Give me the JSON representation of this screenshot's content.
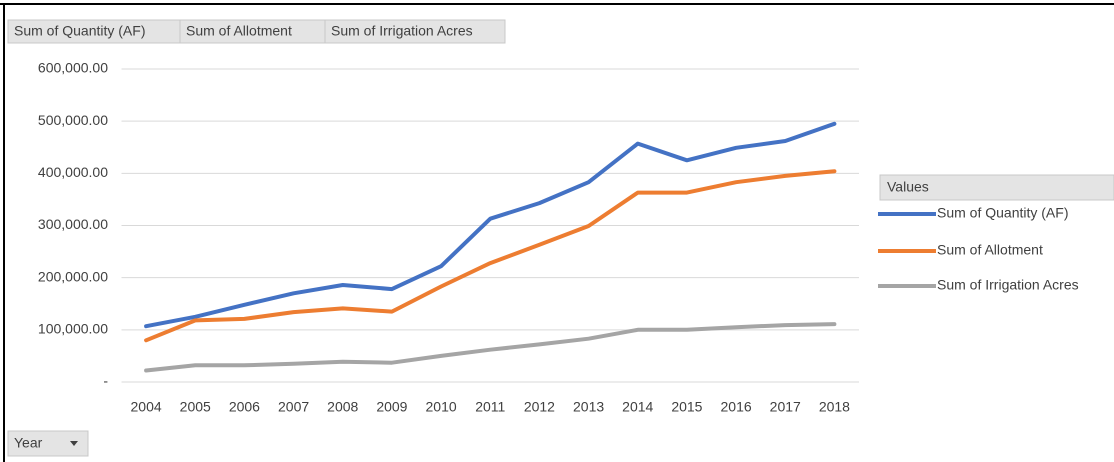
{
  "chart_data": {
    "type": "line",
    "field_buttons": [
      "Sum of Quantity (AF)",
      "Sum of Allotment",
      "Sum of Irrigation Acres"
    ],
    "row_field": "Year",
    "legend_title": "Values",
    "legend": "right",
    "grid": true,
    "categories": [
      "2004",
      "2005",
      "2006",
      "2007",
      "2008",
      "2009",
      "2010",
      "2011",
      "2012",
      "2013",
      "2014",
      "2015",
      "2016",
      "2017",
      "2018"
    ],
    "series": [
      {
        "name": "Sum of Quantity (AF)",
        "color": "#4472c4",
        "values": [
          107000,
          125000,
          148000,
          170000,
          186000,
          178000,
          222000,
          313000,
          343000,
          383000,
          457000,
          425000,
          449000,
          462000,
          495000
        ]
      },
      {
        "name": "Sum of Allotment",
        "color": "#ed7d31",
        "values": [
          80000,
          118000,
          121000,
          134000,
          141000,
          135000,
          183000,
          228000,
          263000,
          299000,
          363000,
          363000,
          383000,
          395000,
          404000
        ]
      },
      {
        "name": "Sum of Irrigation Acres",
        "color": "#a5a5a5",
        "values": [
          22000,
          32000,
          32000,
          35000,
          39000,
          37000,
          50000,
          62000,
          72000,
          83000,
          100000,
          100000,
          105000,
          109000,
          111000
        ]
      }
    ],
    "ylim": [
      0,
      600000
    ],
    "yticks": [
      {
        "value": 0,
        "label": "-"
      },
      {
        "value": 100000,
        "label": "100,000.00"
      },
      {
        "value": 200000,
        "label": "200,000.00"
      },
      {
        "value": 300000,
        "label": "300,000.00"
      },
      {
        "value": 400000,
        "label": "400,000.00"
      },
      {
        "value": 500000,
        "label": "500,000.00"
      },
      {
        "value": 600000,
        "label": "600,000.00"
      }
    ]
  }
}
